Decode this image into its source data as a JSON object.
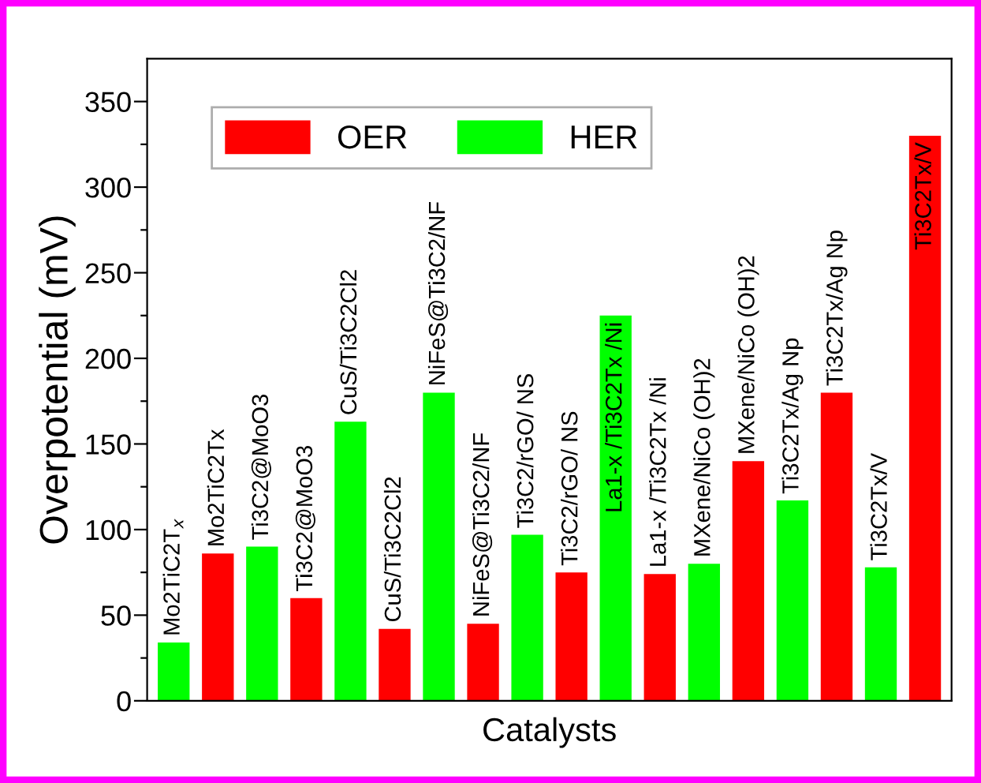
{
  "chart_data": {
    "type": "bar",
    "xlabel": "Catalysts",
    "ylabel": "Overpotential (mV)",
    "categories": [
      "Mo2TiC2T$_{x}$",
      "Mo2TiC2Tx",
      "Ti3C2@MoO3",
      "Ti3C2@MoO3",
      "CuS/Ti3C2Cl2",
      "CuS/Ti3C2Cl2",
      "NiFeS@Ti3C2/NF",
      "NiFeS@Ti3C2/NF",
      "Ti3C2/rGO/ NS",
      "Ti3C2/rGO/ NS",
      "La1-x /Ti3C2Tx /Ni",
      "La1-x /Ti3C2Tx /Ni",
      "MXene/NiCo (OH)2",
      "MXene/NiCo (OH)2",
      "Ti3C2Tx/Ag Np",
      "Ti3C2Tx/Ag Np",
      "Ti3C2Tx/V",
      "Ti3C2Tx/V"
    ],
    "series": [
      {
        "name": "OER",
        "color": "#ff0000",
        "values": [
          null,
          86,
          null,
          60,
          null,
          42,
          null,
          45,
          null,
          75,
          null,
          74,
          null,
          140,
          null,
          180,
          null,
          330
        ]
      },
      {
        "name": "HER",
        "color": "#00ff00",
        "values": [
          34,
          null,
          90,
          null,
          163,
          null,
          180,
          null,
          97,
          null,
          225,
          null,
          80,
          null,
          117,
          null,
          78,
          null
        ]
      }
    ],
    "ylim": [
      0,
      375
    ],
    "yticks": [
      0,
      {
        "value": 25,
        "label": null
      },
      50,
      {
        "value": 75,
        "label": null
      },
      100,
      {
        "value": 125,
        "label": null
      },
      150,
      {
        "value": 175,
        "label": null
      },
      200,
      {
        "value": 225,
        "label": null
      },
      250,
      {
        "value": 275,
        "label": null
      },
      300,
      {
        "value": 325,
        "label": null
      },
      350
    ],
    "legend": "top left",
    "grid": false
  }
}
